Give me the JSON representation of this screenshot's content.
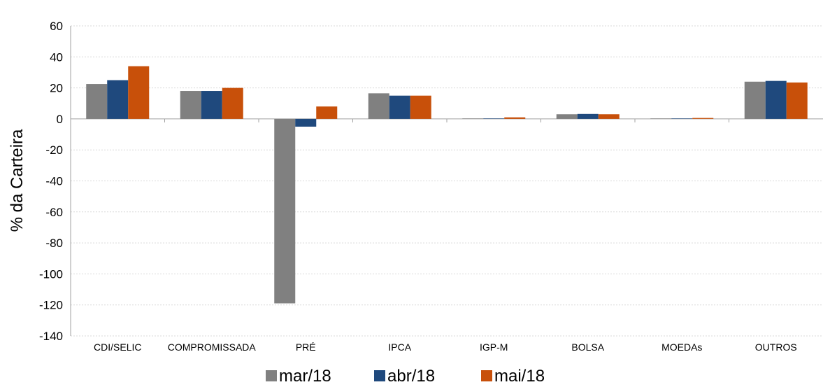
{
  "chart_data": {
    "type": "bar",
    "title": "",
    "xlabel": "",
    "ylabel": "% da Carteira",
    "ylim": [
      -140,
      60
    ],
    "yticks": [
      60,
      40,
      20,
      0,
      -20,
      -40,
      -60,
      -80,
      -100,
      -120,
      -140
    ],
    "grid": true,
    "legend_position": "bottom-center",
    "categories": [
      "CDI/SELIC",
      "COMPROMISSADA",
      "PRÉ",
      "IPCA",
      "IGP-M",
      "BOLSA",
      "MOEDAs",
      "OUTROS"
    ],
    "series": [
      {
        "name": "mar/18",
        "color": "#808080",
        "values": [
          22.5,
          18,
          -119,
          16.5,
          0.3,
          3,
          0.3,
          24
        ]
      },
      {
        "name": "abr/18",
        "color": "#1F497D",
        "values": [
          25,
          18,
          -5,
          15,
          0.3,
          3.2,
          0.3,
          24.5
        ]
      },
      {
        "name": "mai/18",
        "color": "#C8500A",
        "values": [
          34,
          20,
          8,
          15,
          1,
          3,
          0.6,
          23.5
        ]
      }
    ]
  }
}
